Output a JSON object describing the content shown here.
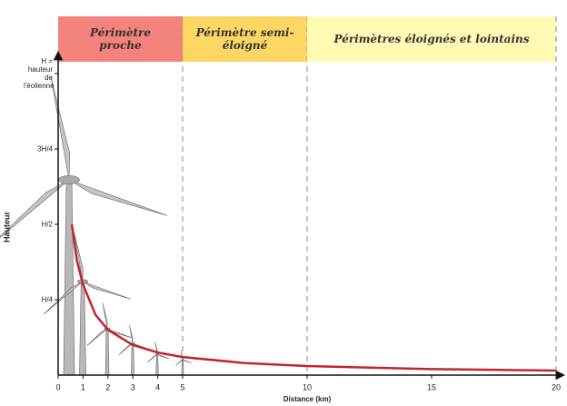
{
  "chart_data": {
    "type": "line",
    "x_label": "Distance (km)",
    "y_label": "Hauteur",
    "xlim": [
      0,
      20
    ],
    "xticks": [
      0,
      1,
      2,
      3,
      4,
      5,
      10,
      15,
      20
    ],
    "ylim": [
      0,
      1
    ],
    "yticks": [
      {
        "value": 0.25,
        "label": "H/4"
      },
      {
        "value": 0.5,
        "label": "H/2"
      },
      {
        "value": 0.75,
        "label": "3H/4"
      },
      {
        "value": 1,
        "label": "H = hauteur de l'éolienne"
      }
    ],
    "zones": [
      {
        "label": "Périmètre proche",
        "start": 0,
        "end": 5,
        "color": "#f4837d"
      },
      {
        "label": "Périmètre semi-éloigné",
        "start": 5,
        "end": 10,
        "color": "#fdd663"
      },
      {
        "label": "Périmètres éloignés et lointains",
        "start": 10,
        "end": 20,
        "color": "#fffab4"
      }
    ],
    "x": [
      0.55,
      0.75,
      1,
      1.5,
      2,
      3,
      4,
      5,
      7.5,
      10,
      15,
      20
    ],
    "values": [
      0.5,
      0.38,
      0.3,
      0.2,
      0.15,
      0.1,
      0.075,
      0.06,
      0.04,
      0.03,
      0.02,
      0.015
    ],
    "color": "#c0272d"
  }
}
